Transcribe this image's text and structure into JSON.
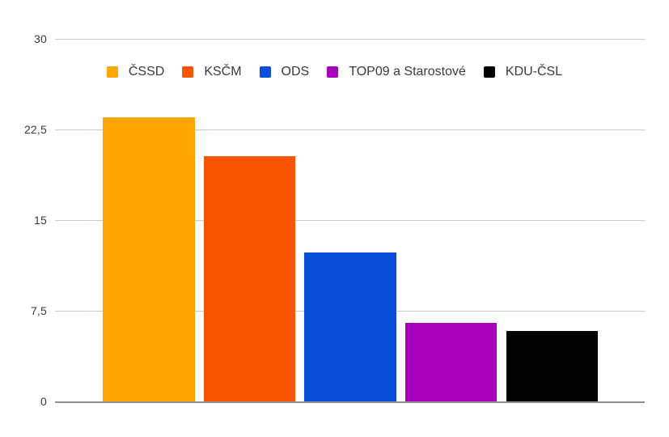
{
  "chart_data": {
    "type": "bar",
    "title": "",
    "xlabel": "",
    "ylabel": "",
    "categories": [
      "ČSSD",
      "KSČM",
      "ODS",
      "TOP09 a Starostové",
      "KDU-ČSL"
    ],
    "values": [
      23.5,
      20.3,
      12.3,
      6.5,
      5.8
    ],
    "colors": [
      "#FFA600",
      "#FB5400",
      "#0A4DD8",
      "#AA00BE",
      "#000000"
    ],
    "ylim": [
      0,
      30
    ],
    "y_ticks": [
      30,
      22.5,
      15,
      7.5,
      0
    ],
    "y_tick_labels": [
      "30",
      "22,5",
      "15",
      "7,5",
      "0"
    ],
    "decimal_separator": ",",
    "grid": true,
    "legend_position": "top-center",
    "gridline_color": "#cccccc",
    "baseline_color": "#8f8f8f",
    "label_color": "#3a3a3a",
    "background_color": "#ffffff"
  },
  "legend": {
    "items": [
      {
        "label": "ČSSD",
        "color": "#FFA600"
      },
      {
        "label": "KSČM",
        "color": "#FB5400"
      },
      {
        "label": "ODS",
        "color": "#0A4DD8"
      },
      {
        "label": "TOP09 a Starostové",
        "color": "#AA00BE"
      },
      {
        "label": "KDU-ČSL",
        "color": "#000000"
      }
    ]
  }
}
